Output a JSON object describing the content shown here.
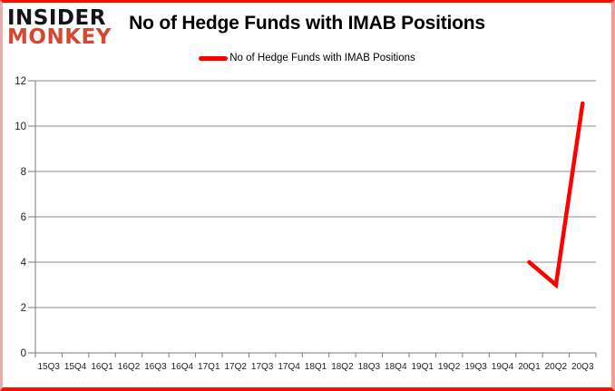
{
  "logo": {
    "line1": "INSIDER",
    "line2": "MONKEY"
  },
  "header": {
    "title": "No of Hedge Funds with IMAB Positions"
  },
  "legend": {
    "label": "No of Hedge Funds with IMAB Positions"
  },
  "colors": {
    "series_red": "#ff0000",
    "logo_black": "#141414",
    "logo_red": "#d5472f",
    "gridline": "#8e8e8e",
    "axis": "#7a7a7a",
    "axis_label": "#1f1f1f",
    "frame_red": "#f51000",
    "background": "#ffffff"
  },
  "chart_data": {
    "type": "line",
    "title": "No of Hedge Funds with IMAB Positions",
    "categories": [
      "15Q3",
      "15Q4",
      "16Q1",
      "16Q2",
      "16Q3",
      "16Q4",
      "17Q1",
      "17Q2",
      "17Q3",
      "17Q4",
      "18Q1",
      "18Q2",
      "18Q3",
      "18Q4",
      "19Q1",
      "19Q2",
      "19Q3",
      "19Q4",
      "20Q1",
      "20Q2",
      "20Q3"
    ],
    "series": [
      {
        "name": "No of Hedge Funds with IMAB Positions",
        "color": "#ff0000",
        "values": [
          null,
          null,
          null,
          null,
          null,
          null,
          null,
          null,
          null,
          null,
          null,
          null,
          null,
          null,
          null,
          null,
          null,
          null,
          4,
          3,
          11
        ]
      }
    ],
    "xlabel": "",
    "ylabel": "",
    "ylim": [
      0,
      12
    ],
    "yticks": [
      0,
      2,
      4,
      6,
      8,
      10,
      12
    ],
    "grid": true,
    "legend_position": "top"
  }
}
